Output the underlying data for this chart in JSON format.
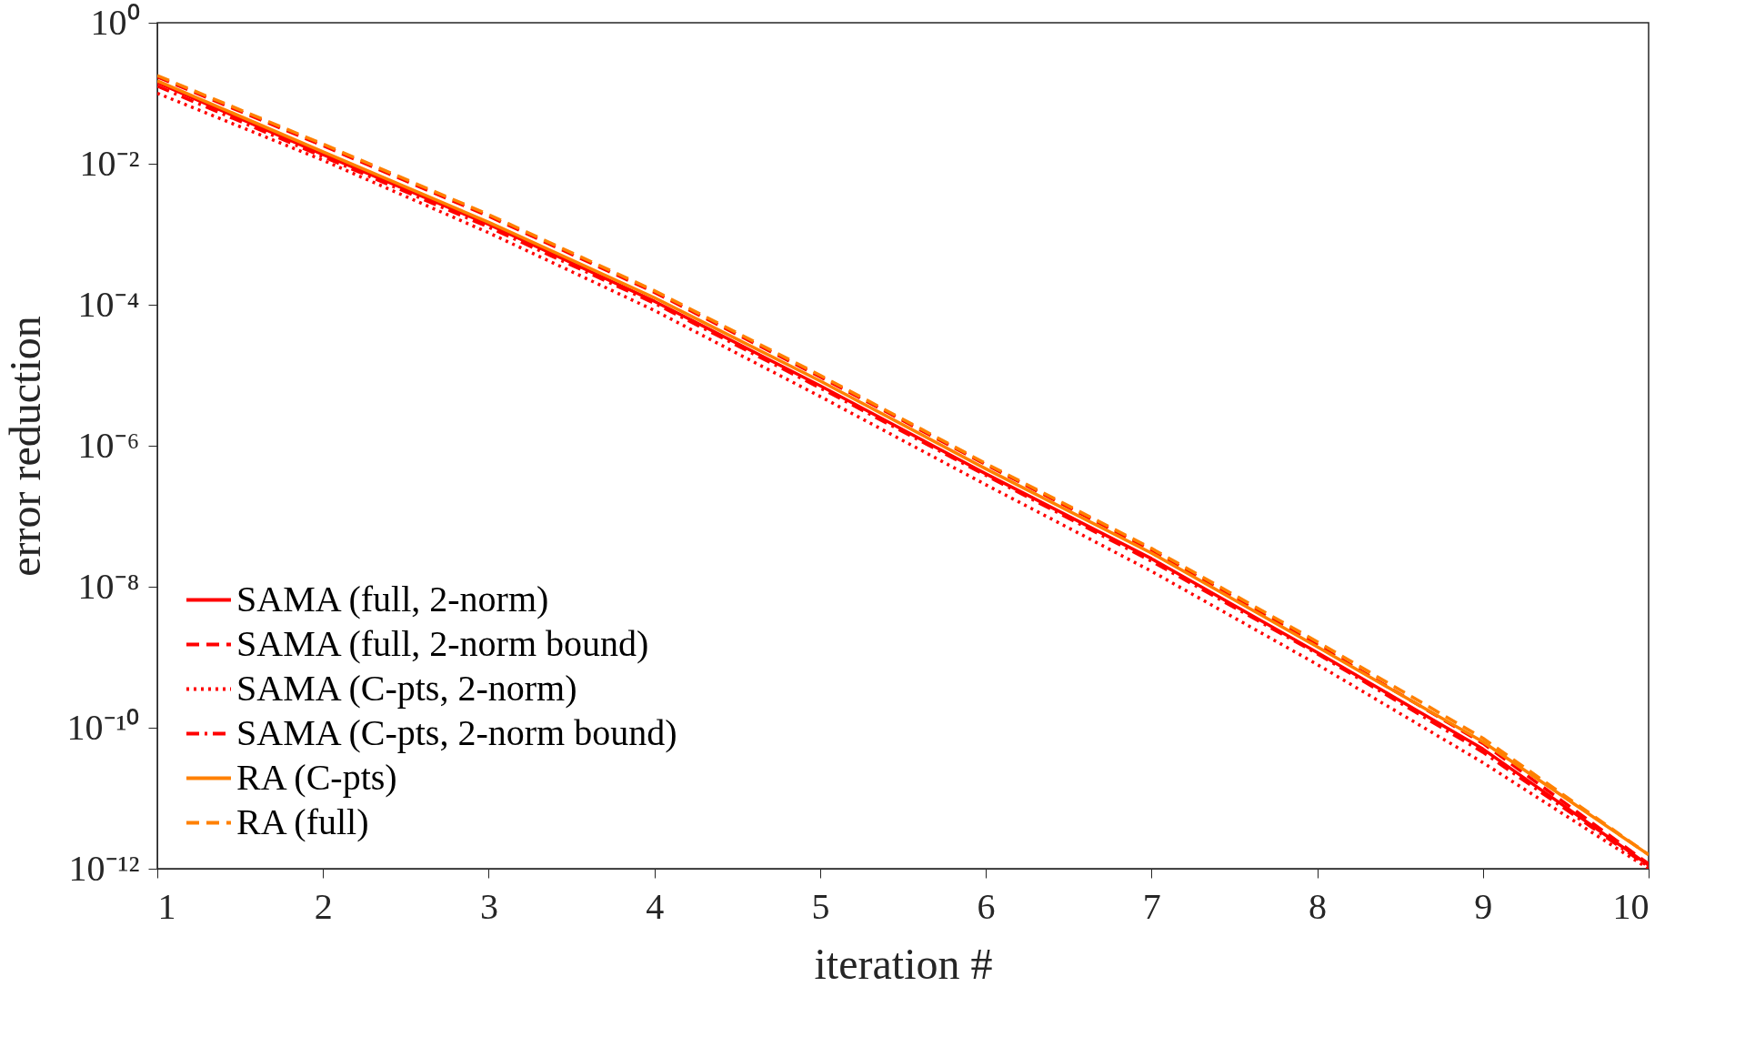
{
  "chart_data": {
    "type": "line",
    "xlabel": "iteration #",
    "ylabel": "error reduction",
    "log": "y",
    "grid": false,
    "legend": "bottom left",
    "x": [
      1,
      2,
      3,
      4,
      5,
      6,
      7,
      8,
      9,
      10
    ],
    "xlim": [
      1,
      10
    ],
    "xticks": [
      1,
      2,
      3,
      4,
      5,
      6,
      7,
      8,
      9,
      10
    ],
    "ylim": [
      1e-12,
      1
    ],
    "yticks": [
      {
        "value": 1,
        "label": "10⁰"
      },
      {
        "value": 0.01,
        "label": "10⁻²"
      },
      {
        "value": 0.0001,
        "label": "10⁻⁴"
      },
      {
        "value": 1e-06,
        "label": "10⁻⁶"
      },
      {
        "value": 1e-08,
        "label": "10⁻⁸"
      },
      {
        "value": 1e-10,
        "label": "10⁻¹⁰"
      },
      {
        "value": 1e-12,
        "label": "10⁻¹²"
      }
    ],
    "series": [
      {
        "name": "SAMA (full, 2-norm)",
        "color": "#ff0000",
        "line_style": "solid",
        "values": [
          0.141,
          0.0135,
          0.00138,
          0.000112,
          7.1e-06,
          4e-07,
          2.5e-08,
          1.17e-09,
          5e-11,
          1.12e-12
        ]
      },
      {
        "name": "SAMA (full, 2-norm bound)",
        "color": "#ff0000",
        "line_style": "dashed",
        "values": [
          0.17,
          0.018,
          0.0018,
          0.00015,
          9.5e-06,
          5.4e-07,
          3.3e-08,
          1.5e-09,
          6e-11,
          1.17e-12
        ]
      },
      {
        "name": "SAMA (C-pts, 2-norm)",
        "color": "#ff0000",
        "line_style": "dotted",
        "values": [
          0.1,
          0.0112,
          0.00105,
          8.3e-05,
          5e-06,
          2.8e-07,
          1.66e-08,
          7.9e-10,
          3.2e-11,
          1e-12
        ]
      },
      {
        "name": "SAMA (C-pts, 2-norm bound)",
        "color": "#ff0000",
        "line_style": "dashdot",
        "values": [
          0.126,
          0.0126,
          0.00126,
          0.000105,
          6.6e-06,
          3.8e-07,
          2.3e-08,
          1.12e-09,
          4.5e-11,
          1.07e-12
        ]
      },
      {
        "name": "RA (C-pts)",
        "color": "#ff8000",
        "line_style": "solid",
        "values": [
          0.15,
          0.0148,
          0.00148,
          0.000126,
          8.3e-06,
          4.7e-07,
          3e-08,
          1.41e-09,
          6.3e-11,
          1.58e-12
        ]
      },
      {
        "name": "RA (full)",
        "color": "#ff8000",
        "line_style": "dashed",
        "values": [
          0.178,
          0.019,
          0.0019,
          0.000158,
          1e-05,
          5.6e-07,
          3.5e-08,
          1.66e-09,
          7.1e-11,
          1.58e-12
        ]
      }
    ]
  }
}
